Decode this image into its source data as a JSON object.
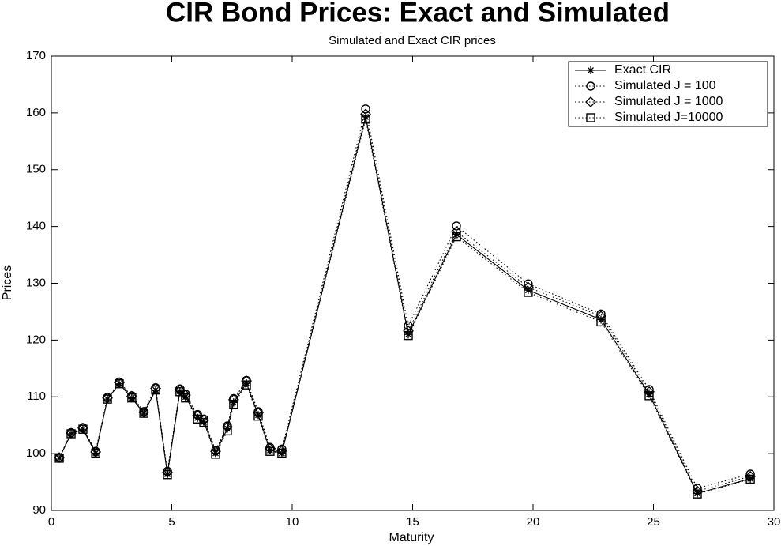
{
  "chart_data": {
    "type": "line",
    "title": "CIR Bond Prices: Exact and Simulated",
    "subtitle": "Simulated and Exact CIR prices",
    "x_label": "Maturity",
    "y_label": "Prices",
    "x": [
      0.33,
      0.82,
      1.31,
      1.84,
      2.33,
      2.82,
      3.34,
      3.84,
      4.33,
      4.82,
      5.34,
      5.57,
      6.07,
      6.33,
      6.82,
      7.31,
      7.57,
      8.1,
      8.59,
      9.08,
      9.57,
      13.05,
      14.82,
      16.82,
      19.8,
      22.82,
      24.82,
      26.82,
      29.02
    ],
    "series": [
      {
        "name": "Exact CIR",
        "color": "#000000",
        "marker": "star",
        "dash": "solid",
        "values": [
          99.2,
          103.5,
          104.3,
          100.1,
          109.6,
          112.3,
          109.8,
          107.1,
          111.2,
          96.4,
          111,
          110,
          106.3,
          105.6,
          100.1,
          104.4,
          109,
          112.4,
          106.8,
          100.6,
          100.1,
          159.3,
          121,
          138.6,
          128.8,
          123.6,
          110.5,
          93,
          95.6
        ]
      },
      {
        "name": "Simulated J = 100",
        "color": "#000000",
        "marker": "circle",
        "dash": "dotted",
        "values": [
          99.3,
          103.7,
          104.6,
          100.4,
          109.9,
          112.6,
          110.2,
          107.4,
          111.6,
          96.9,
          111.4,
          110.5,
          106.9,
          106.1,
          100.6,
          104.9,
          109.7,
          112.9,
          107.4,
          101.1,
          100.8,
          160.7,
          122.5,
          140.1,
          129.9,
          124.6,
          111.3,
          93.9,
          96.4
        ]
      },
      {
        "name": "Simulated J = 1000",
        "color": "#000000",
        "marker": "diamond",
        "dash": "dotted",
        "values": [
          99.3,
          103.6,
          104.5,
          100.3,
          109.8,
          112.5,
          110.1,
          107.3,
          111.5,
          96.7,
          111.2,
          110.3,
          106.7,
          105.9,
          100.4,
          104.7,
          109.5,
          112.8,
          107.2,
          100.9,
          100.5,
          159.8,
          121.6,
          139.1,
          129.3,
          124.2,
          110.9,
          93.4,
          96
        ]
      },
      {
        "name": "Simulated J=10000",
        "color": "#000000",
        "marker": "square",
        "dash": "dotted",
        "values": [
          99.2,
          103.5,
          104.3,
          100.1,
          109.6,
          112.3,
          109.8,
          107.1,
          111.2,
          96.3,
          110.9,
          109.8,
          106.1,
          105.5,
          99.9,
          104,
          108.7,
          112.1,
          106.6,
          100.4,
          100.1,
          158.9,
          120.8,
          138.2,
          128.4,
          123.2,
          110.2,
          92.9,
          95.5
        ]
      }
    ],
    "xlim": [
      0,
      30
    ],
    "xticks": [
      0,
      5,
      10,
      15,
      20,
      25,
      30
    ],
    "ylim": [
      90,
      170
    ],
    "yticks": [
      90,
      100,
      110,
      120,
      130,
      140,
      150,
      160,
      170
    ],
    "grid": false,
    "legend": "top-right"
  }
}
